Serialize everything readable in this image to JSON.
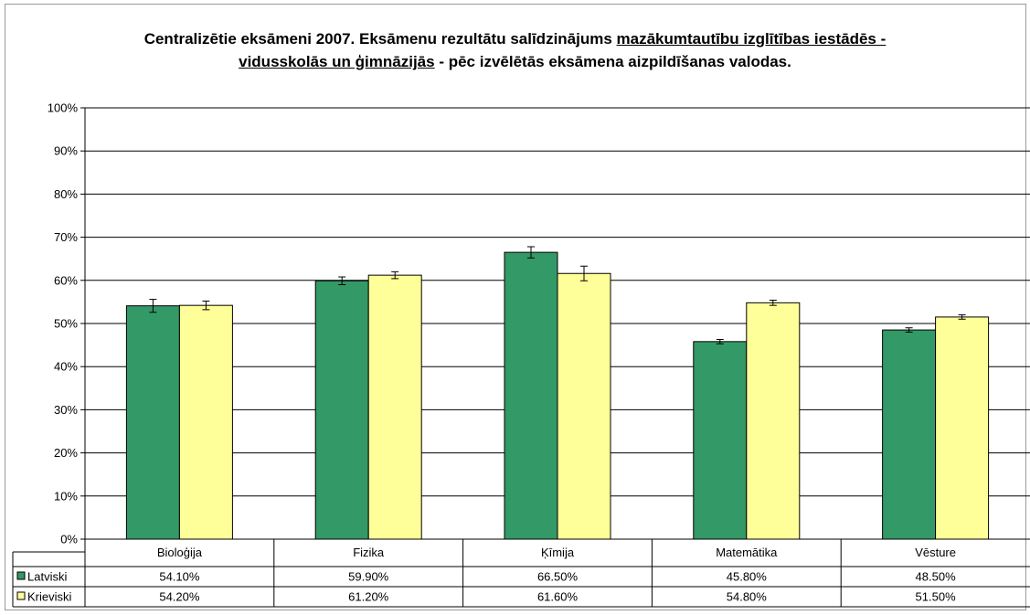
{
  "chart_data": {
    "type": "bar",
    "title_parts": [
      {
        "text": "Centralizētie eksāmeni 2007. Eksāmenu rezultātu salīdzinājums ",
        "u": false
      },
      {
        "text": "mazākumtautību izglītības iestādēs - vidusskolās un ģimnāzijās",
        "u": true
      },
      {
        "text": " - pēc izvēlētās eksāmena aizpildīšanas valodas.",
        "u": false
      }
    ],
    "categories": [
      "Bioloģija",
      "Fizika",
      "Ķīmija",
      "Matemātika",
      "Vēsture"
    ],
    "series": [
      {
        "name": "Latviski",
        "color": "#339966",
        "values": [
          54.1,
          59.9,
          66.5,
          45.8,
          48.5
        ],
        "labels": [
          "54.10%",
          "59.90%",
          "66.50%",
          "45.80%",
          "48.50%"
        ],
        "errors": [
          1.5,
          0.9,
          1.3,
          0.5,
          0.5
        ]
      },
      {
        "name": "Krieviski",
        "color": "#ffff99",
        "values": [
          54.2,
          61.2,
          61.6,
          54.8,
          51.5
        ],
        "labels": [
          "54.20%",
          "61.20%",
          "61.60%",
          "54.80%",
          "51.50%"
        ],
        "errors": [
          1.0,
          0.8,
          1.7,
          0.6,
          0.5
        ]
      }
    ],
    "yticks": [
      "0%",
      "10%",
      "20%",
      "30%",
      "40%",
      "50%",
      "60%",
      "70%",
      "80%",
      "90%",
      "100%"
    ],
    "ylim": [
      0,
      100
    ],
    "grid": true,
    "legend": "data-table"
  }
}
